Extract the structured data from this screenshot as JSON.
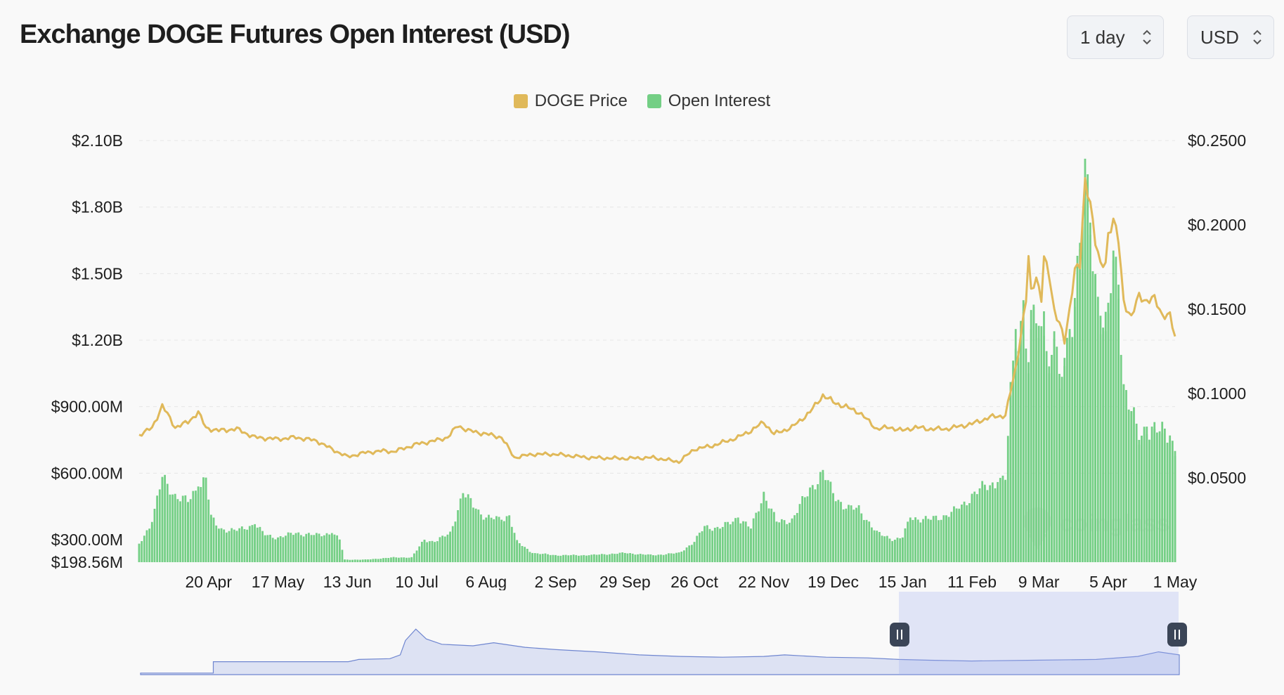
{
  "header": {
    "title": "Exchange DOGE Futures Open Interest (USD)",
    "interval_select": {
      "value": "1 day",
      "icon": "chevron-updown-icon"
    },
    "currency_select": {
      "value": "USD",
      "icon": "chevron-updown-icon"
    }
  },
  "legend": [
    {
      "label": "DOGE Price",
      "color": "#e0b95a"
    },
    {
      "label": "Open Interest",
      "color": "#74cf85"
    }
  ],
  "watermark": {
    "text": "coinglass"
  },
  "chart_data": {
    "type": "bar",
    "x_ticks": [
      "20 Apr",
      "17 May",
      "13 Jun",
      "10 Jul",
      "6 Aug",
      "2 Sep",
      "29 Sep",
      "26 Oct",
      "22 Nov",
      "19 Dec",
      "15 Jan",
      "11 Feb",
      "9 Mar",
      "5 Apr",
      "1 May"
    ],
    "y_left_ticks": [
      "$2.10B",
      "$1.80B",
      "$1.50B",
      "$1.20B",
      "$900.00M",
      "$600.00M",
      "$300.00M",
      "$198.56M"
    ],
    "y_right_ticks": [
      "$0.2500",
      "$0.2000",
      "$0.1500",
      "$0.1000",
      "$0.0500"
    ],
    "y_left_range": [
      198560000,
      2100000000
    ],
    "y_right_range": [
      0,
      0.25
    ],
    "grid": "horizontal dashed",
    "legend_position": "top-center",
    "series": [
      {
        "name": "Open Interest",
        "type": "bar",
        "axis": "left",
        "color": "#74cf85",
        "points": [
          [
            "24 Mar",
            280000000
          ],
          [
            "29 Mar",
            380000000
          ],
          [
            "2 Apr",
            580000000
          ],
          [
            "7 Apr",
            500000000
          ],
          [
            "12 Apr",
            470000000
          ],
          [
            "16 Apr",
            540000000
          ],
          [
            "19 Apr",
            580000000
          ],
          [
            "21 Apr",
            400000000
          ],
          [
            "24 Apr",
            350000000
          ],
          [
            "1 May",
            340000000
          ],
          [
            "8 May",
            370000000
          ],
          [
            "12 May",
            320000000
          ],
          [
            "17 May",
            310000000
          ],
          [
            "24 May",
            330000000
          ],
          [
            "1 Jun",
            320000000
          ],
          [
            "7 Jun",
            330000000
          ],
          [
            "10 Jun",
            300000000
          ],
          [
            "12 Jun",
            210000000
          ],
          [
            "20 Jun",
            210000000
          ],
          [
            "1 Jul",
            220000000
          ],
          [
            "8 Jul",
            220000000
          ],
          [
            "13 Jul",
            300000000
          ],
          [
            "17 Jul",
            290000000
          ],
          [
            "23 Jul",
            330000000
          ],
          [
            "28 Jul",
            510000000
          ],
          [
            "2 Aug",
            440000000
          ],
          [
            "6 Aug",
            400000000
          ],
          [
            "12 Aug",
            390000000
          ],
          [
            "15 Aug",
            410000000
          ],
          [
            "18 Aug",
            290000000
          ],
          [
            "24 Aug",
            240000000
          ],
          [
            "2 Sep",
            230000000
          ],
          [
            "15 Sep",
            230000000
          ],
          [
            "29 Sep",
            240000000
          ],
          [
            "10 Oct",
            230000000
          ],
          [
            "20 Oct",
            240000000
          ],
          [
            "26 Oct",
            290000000
          ],
          [
            "30 Oct",
            360000000
          ],
          [
            "5 Nov",
            350000000
          ],
          [
            "12 Nov",
            400000000
          ],
          [
            "17 Nov",
            350000000
          ],
          [
            "22 Nov",
            510000000
          ],
          [
            "27 Nov",
            380000000
          ],
          [
            "3 Dec",
            390000000
          ],
          [
            "10 Dec",
            530000000
          ],
          [
            "15 Dec",
            600000000
          ],
          [
            "19 Dec",
            510000000
          ],
          [
            "24 Dec",
            440000000
          ],
          [
            "29 Dec",
            440000000
          ],
          [
            "5 Jan",
            330000000
          ],
          [
            "12 Jan",
            300000000
          ],
          [
            "15 Jan",
            310000000
          ],
          [
            "18 Jan",
            400000000
          ],
          [
            "25 Jan",
            390000000
          ],
          [
            "1 Feb",
            410000000
          ],
          [
            "6 Feb",
            440000000
          ],
          [
            "11 Feb",
            500000000
          ],
          [
            "16 Feb",
            540000000
          ],
          [
            "21 Feb",
            560000000
          ],
          [
            "24 Feb",
            570000000
          ],
          [
            "26 Feb",
            950000000
          ],
          [
            "28 Feb",
            1250000000
          ],
          [
            "1 Mar",
            1150000000
          ],
          [
            "3 Mar",
            1380000000
          ],
          [
            "5 Mar",
            1050000000
          ],
          [
            "6 Mar",
            1250000000
          ],
          [
            "7 Mar",
            1360000000
          ],
          [
            "9 Mar",
            1210000000
          ],
          [
            "11 Mar",
            1330000000
          ],
          [
            "13 Mar",
            1050000000
          ],
          [
            "15 Mar",
            1240000000
          ],
          [
            "17 Mar",
            980000000
          ],
          [
            "19 Mar",
            1120000000
          ],
          [
            "21 Mar",
            1250000000
          ],
          [
            "23 Mar",
            1390000000
          ],
          [
            "25 Mar",
            1610000000
          ],
          [
            "27 Mar",
            1920000000
          ],
          [
            "29 Mar",
            1730000000
          ],
          [
            "31 Mar",
            1490000000
          ],
          [
            "2 Apr",
            1310000000
          ],
          [
            "4 Apr",
            1240000000
          ],
          [
            "5 Apr",
            1320000000
          ],
          [
            "7 Apr",
            1560000000
          ],
          [
            "9 Apr",
            1450000000
          ],
          [
            "11 Apr",
            1000000000
          ],
          [
            "14 Apr",
            880000000
          ],
          [
            "17 Apr",
            750000000
          ],
          [
            "20 Apr",
            810000000
          ],
          [
            "23 Apr",
            800000000
          ],
          [
            "26 Apr",
            780000000
          ],
          [
            "29 Apr",
            770000000
          ],
          [
            "1 May",
            700000000
          ]
        ]
      },
      {
        "name": "DOGE Price",
        "type": "line",
        "axis": "right",
        "color": "#e0b95a",
        "points": [
          [
            "24 Mar",
            0.0755
          ],
          [
            "29 Mar",
            0.0795
          ],
          [
            "2 Apr",
            0.0928
          ],
          [
            "7 Apr",
            0.08
          ],
          [
            "12 Apr",
            0.083
          ],
          [
            "16 Apr",
            0.089
          ],
          [
            "19 Apr",
            0.0795
          ],
          [
            "24 Apr",
            0.078
          ],
          [
            "1 May",
            0.079
          ],
          [
            "8 May",
            0.074
          ],
          [
            "17 May",
            0.073
          ],
          [
            "24 May",
            0.074
          ],
          [
            "1 Jun",
            0.072
          ],
          [
            "7 Jun",
            0.067
          ],
          [
            "13 Jun",
            0.0625
          ],
          [
            "20 Jun",
            0.065
          ],
          [
            "27 Jun",
            0.066
          ],
          [
            "1 Jul",
            0.0655
          ],
          [
            "10 Jul",
            0.07
          ],
          [
            "17 Jul",
            0.072
          ],
          [
            "22 Jul",
            0.074
          ],
          [
            "26 Jul",
            0.081
          ],
          [
            "30 Jul",
            0.078
          ],
          [
            "6 Aug",
            0.076
          ],
          [
            "12 Aug",
            0.074
          ],
          [
            "17 Aug",
            0.062
          ],
          [
            "24 Aug",
            0.064
          ],
          [
            "2 Sep",
            0.064
          ],
          [
            "15 Sep",
            0.062
          ],
          [
            "29 Sep",
            0.0615
          ],
          [
            "10 Oct",
            0.062
          ],
          [
            "20 Oct",
            0.0595
          ],
          [
            "26 Oct",
            0.067
          ],
          [
            "2 Nov",
            0.069
          ],
          [
            "12 Nov",
            0.074
          ],
          [
            "17 Nov",
            0.078
          ],
          [
            "22 Nov",
            0.083
          ],
          [
            "26 Nov",
            0.076
          ],
          [
            "3 Dec",
            0.08
          ],
          [
            "10 Dec",
            0.089
          ],
          [
            "15 Dec",
            0.099
          ],
          [
            "19 Dec",
            0.095
          ],
          [
            "24 Dec",
            0.092
          ],
          [
            "29 Dec",
            0.089
          ],
          [
            "5 Jan",
            0.079
          ],
          [
            "10 Jan",
            0.08
          ],
          [
            "15 Jan",
            0.078
          ],
          [
            "20 Jan",
            0.08
          ],
          [
            "25 Jan",
            0.079
          ],
          [
            "1 Feb",
            0.079
          ],
          [
            "11 Feb",
            0.082
          ],
          [
            "18 Feb",
            0.086
          ],
          [
            "24 Feb",
            0.087
          ],
          [
            "28 Feb",
            0.115
          ],
          [
            "2 Mar",
            0.135
          ],
          [
            "4 Mar",
            0.155
          ],
          [
            "5 Mar",
            0.18
          ],
          [
            "6 Mar",
            0.16
          ],
          [
            "8 Mar",
            0.17
          ],
          [
            "10 Mar",
            0.156
          ],
          [
            "11 Mar",
            0.18
          ],
          [
            "13 Mar",
            0.17
          ],
          [
            "15 Mar",
            0.15
          ],
          [
            "17 Mar",
            0.142
          ],
          [
            "19 Mar",
            0.13
          ],
          [
            "21 Mar",
            0.15
          ],
          [
            "23 Mar",
            0.175
          ],
          [
            "25 Mar",
            0.175
          ],
          [
            "27 Mar",
            0.225
          ],
          [
            "29 Mar",
            0.215
          ],
          [
            "31 Mar",
            0.19
          ],
          [
            "2 Apr",
            0.175
          ],
          [
            "4 Apr",
            0.178
          ],
          [
            "5 Apr",
            0.195
          ],
          [
            "7 Apr",
            0.203
          ],
          [
            "9 Apr",
            0.19
          ],
          [
            "11 Apr",
            0.155
          ],
          [
            "14 Apr",
            0.145
          ],
          [
            "17 Apr",
            0.158
          ],
          [
            "20 Apr",
            0.155
          ],
          [
            "23 Apr",
            0.156
          ],
          [
            "26 Apr",
            0.147
          ],
          [
            "29 Apr",
            0.146
          ],
          [
            "1 May",
            0.133
          ]
        ]
      }
    ]
  },
  "navigator": {
    "handles": [
      {
        "name": "left-handle",
        "icon": "pause-grip-icon"
      },
      {
        "name": "right-handle",
        "icon": "pause-grip-icon"
      }
    ]
  }
}
